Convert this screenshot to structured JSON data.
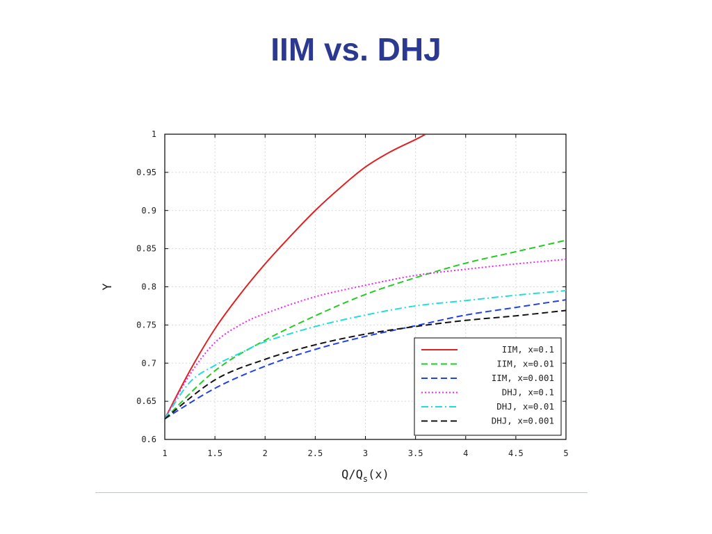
{
  "slide": {
    "title": "IIM vs. DHJ"
  },
  "chart_data": {
    "type": "line",
    "title": "",
    "xlabel": "Q/Q",
    "xlabel_sub": "s",
    "xlabel_tail": "(x)",
    "ylabel": "Y",
    "xlim": [
      1,
      5
    ],
    "ylim": [
      0.6,
      1
    ],
    "xticks": [
      1,
      1.5,
      2,
      2.5,
      3,
      3.5,
      4,
      4.5,
      5
    ],
    "xtick_labels": [
      "1",
      "1.5",
      "2",
      "2.5",
      "3",
      "3.5",
      "4",
      "4.5",
      "5"
    ],
    "yticks": [
      0.6,
      0.65,
      0.7,
      0.75,
      0.8,
      0.85,
      0.9,
      0.95,
      1
    ],
    "ytick_labels": [
      "0.6",
      "0.65",
      "0.7",
      "0.75",
      "0.8",
      "0.85",
      "0.9",
      "0.95",
      "1"
    ],
    "grid": true,
    "legend_position": "bottom-right",
    "series": [
      {
        "name": "IIM, x=0.1",
        "color": "#e02020",
        "dash": "solid",
        "x": [
          1,
          1.25,
          1.5,
          1.75,
          2,
          2.25,
          2.5,
          2.75,
          3,
          3.25,
          3.5,
          3.6
        ],
        "y": [
          0.627,
          0.69,
          0.745,
          0.79,
          0.83,
          0.866,
          0.9,
          0.93,
          0.957,
          0.977,
          0.993,
          1.0
        ]
      },
      {
        "name": "IIM, x=0.01",
        "color": "#22cc22",
        "dash": "dashed",
        "x": [
          1,
          1.5,
          2,
          2.5,
          3,
          3.5,
          4,
          4.5,
          5
        ],
        "y": [
          0.627,
          0.69,
          0.73,
          0.762,
          0.79,
          0.812,
          0.831,
          0.846,
          0.861
        ]
      },
      {
        "name": "IIM, x=0.001",
        "color": "#2040ee",
        "dash": "dashed",
        "x": [
          1,
          1.5,
          2,
          2.5,
          3,
          3.5,
          4,
          4.5,
          5
        ],
        "y": [
          0.627,
          0.667,
          0.696,
          0.718,
          0.735,
          0.749,
          0.763,
          0.773,
          0.783
        ]
      },
      {
        "name": "DHJ, x=0.1",
        "color": "#ee22ee",
        "dash": "dotted",
        "x": [
          1,
          1.25,
          1.5,
          1.75,
          2,
          2.5,
          3,
          3.5,
          4,
          4.5,
          5
        ],
        "y": [
          0.627,
          0.685,
          0.727,
          0.75,
          0.765,
          0.787,
          0.802,
          0.815,
          0.823,
          0.83,
          0.836
        ]
      },
      {
        "name": "DHJ, x=0.01",
        "color": "#22dddd",
        "dash": "dashdot",
        "x": [
          1,
          1.25,
          1.5,
          1.75,
          2,
          2.5,
          3,
          3.5,
          4,
          4.5,
          5
        ],
        "y": [
          0.627,
          0.675,
          0.697,
          0.713,
          0.728,
          0.748,
          0.763,
          0.775,
          0.782,
          0.789,
          0.795
        ]
      },
      {
        "name": "DHJ, x=0.001",
        "color": "#111111",
        "dash": "dashed",
        "x": [
          1,
          1.5,
          2,
          2.5,
          3,
          3.5,
          4,
          4.5,
          5
        ],
        "y": [
          0.627,
          0.678,
          0.705,
          0.724,
          0.738,
          0.748,
          0.756,
          0.762,
          0.769
        ]
      }
    ]
  }
}
